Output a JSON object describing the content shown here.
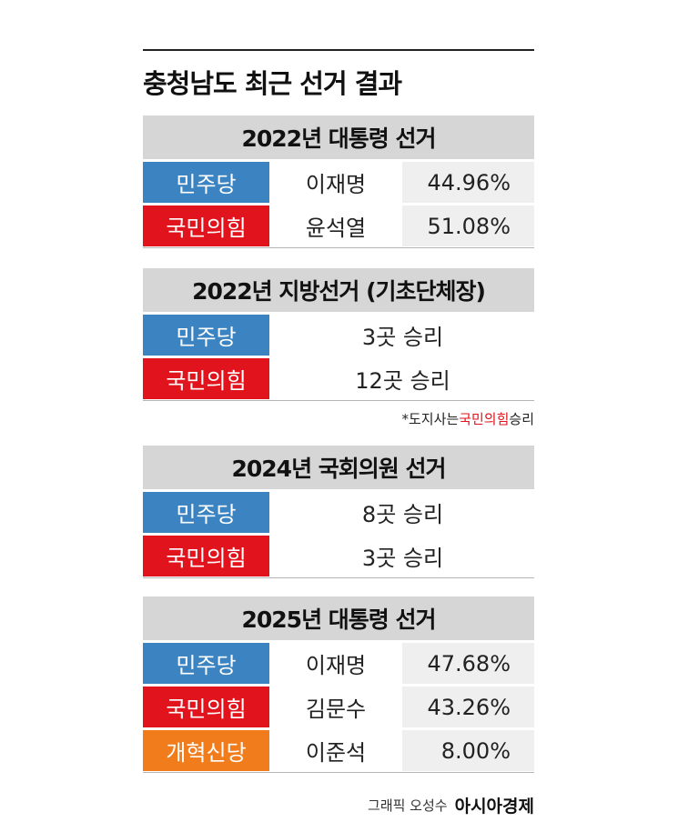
{
  "title": "충청남도 최근 선거 결과",
  "sections": [
    {
      "header": "2022년 대통령 선거",
      "rows": [
        {
          "party": "민주당",
          "color": "#3b83c1",
          "candidate": "이재명",
          "result": "44.96%"
        },
        {
          "party": "국민의힘",
          "color": "#e1131c",
          "candidate": "윤석열",
          "result": "51.08%"
        }
      ]
    },
    {
      "header": "2022년 지방선거 (기초단체장)",
      "rows": [
        {
          "party": "민주당",
          "color": "#3b83c1",
          "result": "3곳 승리"
        },
        {
          "party": "국민의힘",
          "color": "#e1131c",
          "result": "12곳 승리"
        }
      ],
      "note": {
        "prefix": "*도지사는 ",
        "highlight": "국민의힘",
        "suffix": " 승리"
      }
    },
    {
      "header": "2024년 국회의원 선거",
      "rows": [
        {
          "party": "민주당",
          "color": "#3b83c1",
          "result": "8곳 승리"
        },
        {
          "party": "국민의힘",
          "color": "#e1131c",
          "result": "3곳 승리"
        }
      ]
    },
    {
      "header": "2025년 대통령 선거",
      "rows": [
        {
          "party": "민주당",
          "color": "#3b83c1",
          "candidate": "이재명",
          "result": "47.68%"
        },
        {
          "party": "국민의힘",
          "color": "#e1131c",
          "candidate": "김문수",
          "result": "43.26%"
        },
        {
          "party": "개혁신당",
          "color": "#f07c1c",
          "candidate": "이준석",
          "result": "8.00%"
        }
      ]
    }
  ],
  "footer": {
    "credit": "그래픽 오성수",
    "brand": "아시아경제"
  }
}
